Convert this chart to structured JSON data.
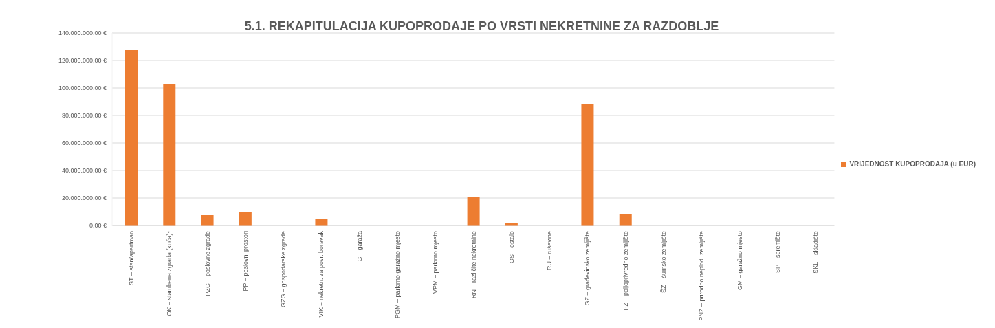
{
  "chart_data": {
    "type": "bar",
    "title": "5.1. REKAPITULACIJA KUPOPRODAJE PO VRSTI NEKRETNINE ZA RAZDOBLJE",
    "categories": [
      "ST – stan/apartman",
      "OK – stambena zgrada (kuća)*",
      "PZG – poslovne zgrade",
      "PP – poslovni prostori",
      "GZG – gospodarske zgrade",
      "VIK – nekretn. za povr. boravak",
      "G – garaža",
      "PGM – parkirno garažno mjesto",
      "VPM – parkirno mjesto",
      "RN – različite nekretnine",
      "OS – ostalo",
      "RU – ruševine",
      "GZ – građevinsko zemljište",
      "PZ – poljoprivredno zemljište",
      "ŠZ – šumsko zemljište",
      "PNZ – prirodno neplod. zemljište",
      "GM – garažno mjesto",
      "SP – spremište",
      "SKL – skladište"
    ],
    "series": [
      {
        "name": "VRIJEDNOST KUPOPRODAJA (u EUR)",
        "color": "#ed7d31",
        "values": [
          127500000,
          103000000,
          7500000,
          9500000,
          0,
          4500000,
          0,
          0,
          0,
          21000000,
          2000000,
          0,
          88500000,
          8500000,
          0,
          0,
          0,
          0,
          0
        ]
      }
    ],
    "ylim": [
      0,
      140000000
    ],
    "yticks": [
      {
        "value": 0,
        "label": "0,00 €"
      },
      {
        "value": 20000000,
        "label": "20.000.000,00 €"
      },
      {
        "value": 40000000,
        "label": "40.000.000,00 €"
      },
      {
        "value": 60000000,
        "label": "60.000.000,00 €"
      },
      {
        "value": 80000000,
        "label": "80.000.000,00 €"
      },
      {
        "value": 100000000,
        "label": "100.000.000,00 €"
      },
      {
        "value": 120000000,
        "label": "120.000.000,00 €"
      },
      {
        "value": 140000000,
        "label": "140.000.000,00 €"
      }
    ],
    "grid": "y",
    "legend": "right"
  }
}
